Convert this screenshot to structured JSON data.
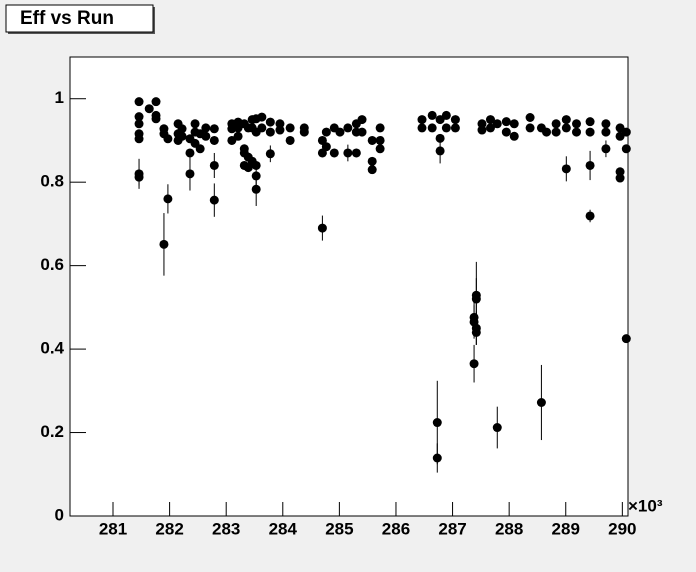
{
  "chart_data": {
    "type": "scatter",
    "title": "Eff vs Run",
    "x_multiplier": "×10³",
    "color": "#000000",
    "x": [
      281.46,
      281.46,
      281.46,
      281.46,
      281.46,
      281.46,
      281.46,
      281.64,
      281.76,
      281.76,
      281.76,
      281.9,
      281.9,
      281.9,
      281.97,
      281.97,
      282.15,
      282.15,
      282.15,
      282.22,
      282.22,
      282.36,
      282.36,
      282.36,
      282.45,
      282.45,
      282.45,
      282.54,
      282.54,
      282.64,
      282.64,
      282.79,
      282.79,
      282.79,
      282.79,
      283.1,
      283.1,
      283.1,
      283.21,
      283.21,
      283.21,
      283.32,
      283.32,
      283.32,
      283.32,
      283.39,
      283.39,
      283.39,
      283.46,
      283.46,
      283.46,
      283.53,
      283.53,
      283.53,
      283.53,
      283.53,
      283.63,
      283.63,
      283.78,
      283.78,
      283.78,
      283.95,
      283.95,
      284.13,
      284.13,
      284.38,
      284.38,
      284.7,
      284.7,
      284.7,
      284.77,
      284.77,
      284.91,
      284.91,
      285.01,
      285.15,
      285.15,
      285.3,
      285.3,
      285.3,
      285.4,
      285.4,
      285.58,
      285.58,
      285.58,
      285.72,
      285.72,
      285.72,
      286.46,
      286.46,
      286.64,
      286.64,
      286.73,
      286.73,
      286.78,
      286.78,
      286.78,
      286.89,
      286.89,
      287.05,
      287.05,
      287.38,
      287.38,
      287.38,
      287.42,
      287.42,
      287.42,
      287.42,
      287.52,
      287.52,
      287.67,
      287.67,
      287.79,
      287.79,
      287.95,
      287.95,
      288.09,
      288.09,
      288.37,
      288.37,
      288.57,
      288.57,
      288.66,
      288.83,
      288.83,
      289.01,
      289.01,
      289.01,
      289.19,
      289.19,
      289.43,
      289.43,
      289.43,
      289.43,
      289.71,
      289.71,
      289.71,
      289.96,
      289.96,
      289.96,
      289.96,
      290.07,
      290.07,
      290.07
    ],
    "values": [
      0.993,
      0.957,
      0.94,
      0.916,
      0.904,
      0.82,
      0.812,
      0.976,
      0.993,
      0.96,
      0.952,
      0.928,
      0.916,
      0.651,
      0.904,
      0.76,
      0.94,
      0.916,
      0.9,
      0.928,
      0.91,
      0.904,
      0.87,
      0.82,
      0.94,
      0.92,
      0.893,
      0.916,
      0.88,
      0.93,
      0.91,
      0.928,
      0.9,
      0.84,
      0.757,
      0.94,
      0.928,
      0.9,
      0.944,
      0.93,
      0.91,
      0.94,
      0.88,
      0.87,
      0.84,
      0.93,
      0.86,
      0.835,
      0.95,
      0.93,
      0.85,
      0.952,
      0.92,
      0.84,
      0.815,
      0.783,
      0.956,
      0.93,
      0.944,
      0.92,
      0.868,
      0.94,
      0.925,
      0.93,
      0.9,
      0.93,
      0.92,
      0.9,
      0.87,
      0.69,
      0.92,
      0.885,
      0.93,
      0.87,
      0.92,
      0.93,
      0.87,
      0.94,
      0.92,
      0.87,
      0.95,
      0.92,
      0.9,
      0.85,
      0.83,
      0.93,
      0.9,
      0.88,
      0.95,
      0.93,
      0.96,
      0.93,
      0.224,
      0.139,
      0.95,
      0.905,
      0.875,
      0.96,
      0.93,
      0.95,
      0.93,
      0.476,
      0.465,
      0.365,
      0.529,
      0.52,
      0.45,
      0.44,
      0.94,
      0.925,
      0.95,
      0.93,
      0.212,
      0.94,
      0.945,
      0.92,
      0.94,
      0.91,
      0.955,
      0.93,
      0.272,
      0.93,
      0.92,
      0.94,
      0.92,
      0.95,
      0.93,
      0.832,
      0.94,
      0.92,
      0.945,
      0.92,
      0.84,
      0.719,
      0.94,
      0.92,
      0.88,
      0.93,
      0.91,
      0.825,
      0.81,
      0.92,
      0.88,
      0.425
    ],
    "errors": [
      0.01,
      0.01,
      0.01,
      0.01,
      0.01,
      0.036,
      0.02,
      0.01,
      0.01,
      0.01,
      0.01,
      0.01,
      0.01,
      0.075,
      0.01,
      0.035,
      0.01,
      0.01,
      0.01,
      0.01,
      0.01,
      0.01,
      0.01,
      0.04,
      0.01,
      0.01,
      0.01,
      0.01,
      0.01,
      0.01,
      0.01,
      0.01,
      0.01,
      0.03,
      0.04,
      0.01,
      0.01,
      0.01,
      0.01,
      0.01,
      0.01,
      0.01,
      0.01,
      0.01,
      0.01,
      0.01,
      0.01,
      0.01,
      0.01,
      0.01,
      0.01,
      0.01,
      0.01,
      0.01,
      0.03,
      0.04,
      0.01,
      0.01,
      0.01,
      0.01,
      0.02,
      0.01,
      0.01,
      0.01,
      0.01,
      0.01,
      0.01,
      0.01,
      0.01,
      0.03,
      0.01,
      0.01,
      0.01,
      0.01,
      0.01,
      0.01,
      0.02,
      0.01,
      0.01,
      0.01,
      0.01,
      0.01,
      0.01,
      0.01,
      0.01,
      0.01,
      0.01,
      0.01,
      0.01,
      0.01,
      0.01,
      0.01,
      0.1,
      0.035,
      0.01,
      0.01,
      0.03,
      0.01,
      0.01,
      0.01,
      0.01,
      0.04,
      0.04,
      0.045,
      0.08,
      0.05,
      0.04,
      0.03,
      0.01,
      0.01,
      0.01,
      0.01,
      0.05,
      0.01,
      0.01,
      0.01,
      0.01,
      0.01,
      0.01,
      0.01,
      0.09,
      0.01,
      0.01,
      0.01,
      0.01,
      0.01,
      0.01,
      0.03,
      0.01,
      0.01,
      0.01,
      0.01,
      0.035,
      0.015,
      0.01,
      0.01,
      0.02,
      0.01,
      0.01,
      0.01,
      0.01,
      0.01,
      0.01,
      0.01
    ],
    "xlim": [
      280.24,
      290.1
    ],
    "ylim": [
      0,
      1.1
    ],
    "xticks": [
      281,
      282,
      283,
      284,
      285,
      286,
      287,
      288,
      289,
      290
    ],
    "yticks": [
      0,
      0.2,
      0.4,
      0.6,
      0.8,
      1
    ]
  }
}
